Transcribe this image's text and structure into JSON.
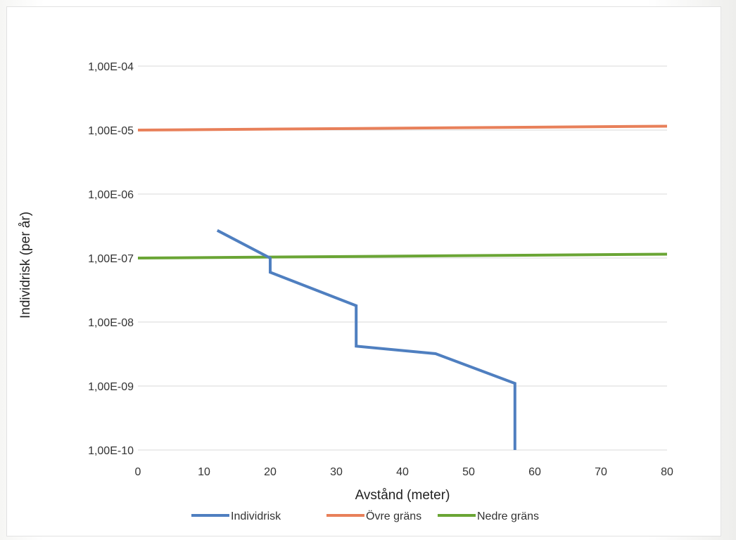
{
  "chart_data": {
    "type": "line",
    "title": "",
    "xlabel": "Avstånd (meter)",
    "ylabel": "Individrisk (per år)",
    "xlim": [
      0,
      80
    ],
    "ylim": [
      1e-10,
      0.0001
    ],
    "yscale": "log",
    "x_ticks": [
      "0",
      "10",
      "20",
      "30",
      "40",
      "50",
      "60",
      "70",
      "80"
    ],
    "y_ticks": [
      "1,00E-10",
      "1,00E-09",
      "1,00E-08",
      "1,00E-07",
      "1,00E-06",
      "1,00E-05",
      "1,00E-04"
    ],
    "grid": "horizontal",
    "legend_position": "bottom",
    "series": [
      {
        "name": "Individrisk",
        "color": "#4f7fc0",
        "points": [
          [
            12,
            2.7e-07
          ],
          [
            20,
            1e-07
          ],
          [
            20,
            6e-08
          ],
          [
            33,
            1.8e-08
          ],
          [
            33,
            4.2e-09
          ],
          [
            45,
            3.2e-09
          ],
          [
            57,
            1.1e-09
          ],
          [
            57,
            1e-10
          ]
        ]
      },
      {
        "name": "Övre gräns",
        "color": "#e8805a",
        "points": [
          [
            0,
            1e-05
          ],
          [
            80,
            1.15e-05
          ]
        ]
      },
      {
        "name": "Nedre gräns",
        "color": "#6aa535",
        "points": [
          [
            0,
            1e-07
          ],
          [
            80,
            1.15e-07
          ]
        ]
      }
    ]
  }
}
